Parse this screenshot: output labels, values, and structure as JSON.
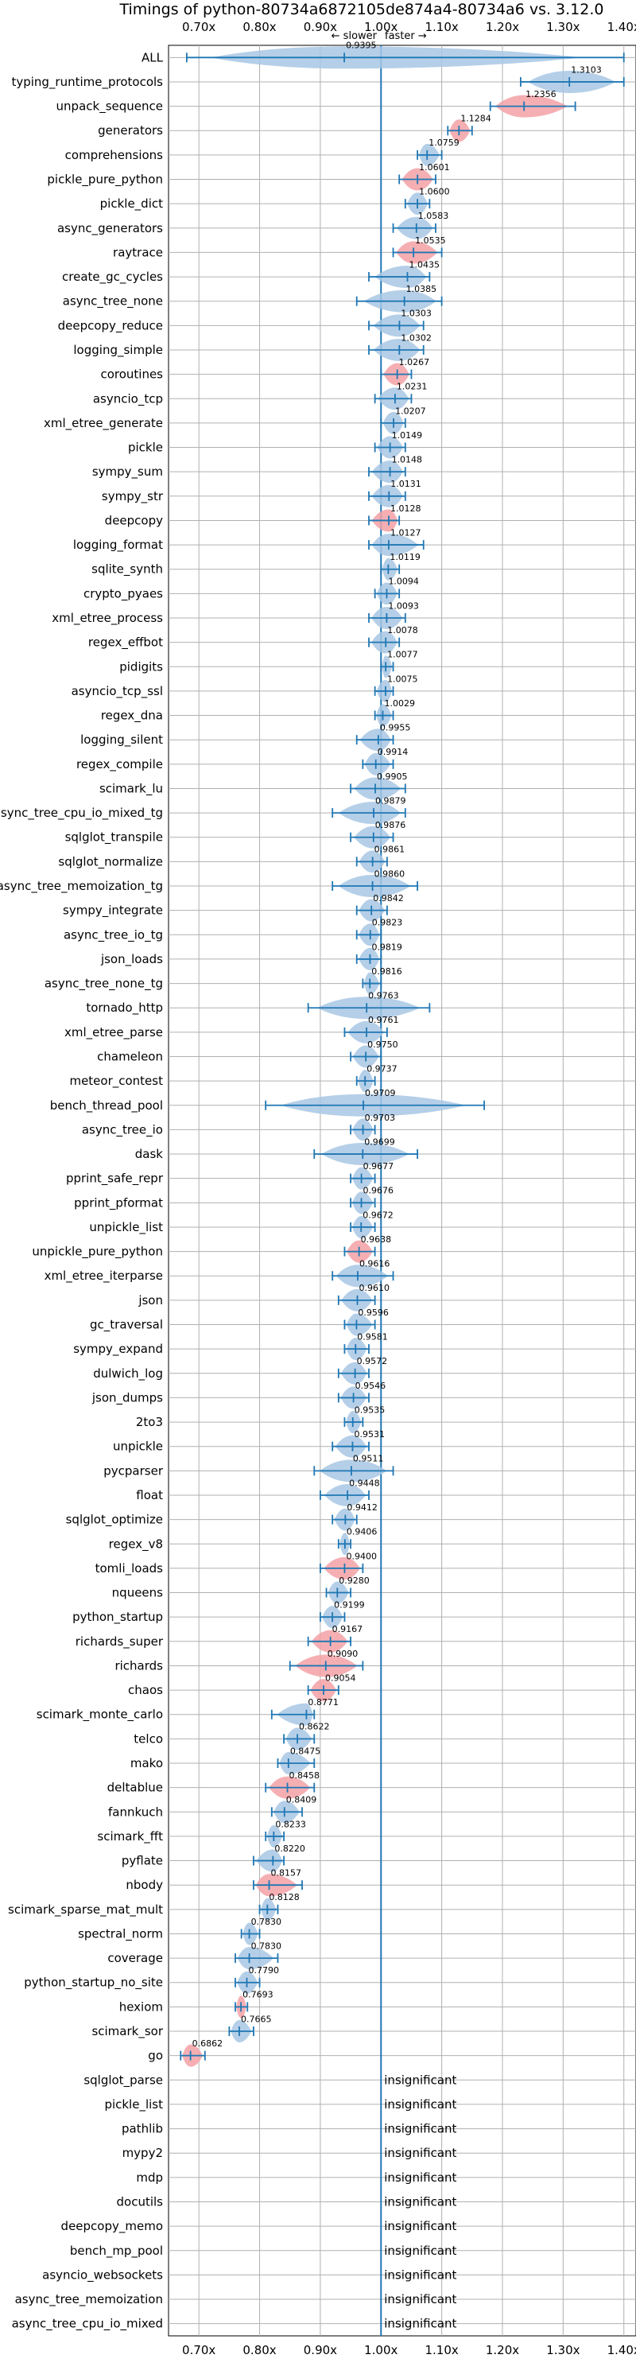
{
  "chart_data": {
    "type": "violin",
    "title": "Timings of python-80734a6872105de874a4-80734a6 vs. 3.12.0",
    "speed_note": {
      "slower": "← slower",
      "faster": "faster →"
    },
    "x_ticks": [
      "0.70x",
      "0.80x",
      "0.90x",
      "1.00x",
      "1.10x",
      "1.20x",
      "1.30x",
      "1.40x"
    ],
    "xlim": [
      0.65,
      1.42
    ],
    "grid": true,
    "insignificant_label": "insignificant",
    "benchmarks": [
      {
        "name": "ALL",
        "value": 0.9395,
        "label": "0.9395",
        "low": 0.68,
        "high": 1.4,
        "color": "blue"
      },
      {
        "name": "typing_runtime_protocols",
        "value": 1.3103,
        "label": "1.3103",
        "low": 1.23,
        "high": 1.4,
        "color": "blue"
      },
      {
        "name": "unpack_sequence",
        "value": 1.2356,
        "label": "1.2356",
        "low": 1.18,
        "high": 1.32,
        "color": "red"
      },
      {
        "name": "generators",
        "value": 1.1284,
        "label": "1.1284",
        "low": 1.11,
        "high": 1.15,
        "color": "red"
      },
      {
        "name": "comprehensions",
        "value": 1.0759,
        "label": "1.0759",
        "low": 1.06,
        "high": 1.1,
        "color": "blue"
      },
      {
        "name": "pickle_pure_python",
        "value": 1.0601,
        "label": "1.0601",
        "low": 1.03,
        "high": 1.09,
        "color": "red"
      },
      {
        "name": "pickle_dict",
        "value": 1.06,
        "label": "1.0600",
        "low": 1.04,
        "high": 1.08,
        "color": "blue"
      },
      {
        "name": "async_generators",
        "value": 1.0583,
        "label": "1.0583",
        "low": 1.02,
        "high": 1.09,
        "color": "blue"
      },
      {
        "name": "raytrace",
        "value": 1.0535,
        "label": "1.0535",
        "low": 1.02,
        "high": 1.1,
        "color": "red"
      },
      {
        "name": "create_gc_cycles",
        "value": 1.0435,
        "label": "1.0435",
        "low": 0.98,
        "high": 1.08,
        "color": "blue"
      },
      {
        "name": "async_tree_none",
        "value": 1.0385,
        "label": "1.0385",
        "low": 0.96,
        "high": 1.1,
        "color": "blue"
      },
      {
        "name": "deepcopy_reduce",
        "value": 1.0303,
        "label": "1.0303",
        "low": 0.98,
        "high": 1.07,
        "color": "blue"
      },
      {
        "name": "logging_simple",
        "value": 1.0302,
        "label": "1.0302",
        "low": 0.98,
        "high": 1.07,
        "color": "blue"
      },
      {
        "name": "coroutines",
        "value": 1.0267,
        "label": "1.0267",
        "low": 1.0,
        "high": 1.05,
        "color": "red"
      },
      {
        "name": "asyncio_tcp",
        "value": 1.0231,
        "label": "1.0231",
        "low": 0.99,
        "high": 1.05,
        "color": "blue"
      },
      {
        "name": "xml_etree_generate",
        "value": 1.0207,
        "label": "1.0207",
        "low": 1.0,
        "high": 1.04,
        "color": "blue"
      },
      {
        "name": "pickle",
        "value": 1.0149,
        "label": "1.0149",
        "low": 0.99,
        "high": 1.04,
        "color": "blue"
      },
      {
        "name": "sympy_sum",
        "value": 1.0148,
        "label": "1.0148",
        "low": 0.98,
        "high": 1.04,
        "color": "blue"
      },
      {
        "name": "sympy_str",
        "value": 1.0131,
        "label": "1.0131",
        "low": 0.98,
        "high": 1.04,
        "color": "blue"
      },
      {
        "name": "deepcopy",
        "value": 1.0128,
        "label": "1.0128",
        "low": 0.98,
        "high": 1.03,
        "color": "red"
      },
      {
        "name": "logging_format",
        "value": 1.0127,
        "label": "1.0127",
        "low": 0.98,
        "high": 1.07,
        "color": "blue"
      },
      {
        "name": "sqlite_synth",
        "value": 1.0119,
        "label": "1.0119",
        "low": 1.0,
        "high": 1.03,
        "color": "blue"
      },
      {
        "name": "crypto_pyaes",
        "value": 1.0094,
        "label": "1.0094",
        "low": 0.99,
        "high": 1.03,
        "color": "blue"
      },
      {
        "name": "xml_etree_process",
        "value": 1.0093,
        "label": "1.0093",
        "low": 0.98,
        "high": 1.04,
        "color": "blue"
      },
      {
        "name": "regex_effbot",
        "value": 1.0078,
        "label": "1.0078",
        "low": 0.98,
        "high": 1.03,
        "color": "blue"
      },
      {
        "name": "pidigits",
        "value": 1.0077,
        "label": "1.0077",
        "low": 1.0,
        "high": 1.02,
        "color": "blue"
      },
      {
        "name": "asyncio_tcp_ssl",
        "value": 1.0075,
        "label": "1.0075",
        "low": 0.99,
        "high": 1.02,
        "color": "blue"
      },
      {
        "name": "regex_dna",
        "value": 1.0029,
        "label": "1.0029",
        "low": 0.99,
        "high": 1.02,
        "color": "blue"
      },
      {
        "name": "logging_silent",
        "value": 0.9955,
        "label": "0.9955",
        "low": 0.96,
        "high": 1.02,
        "color": "blue"
      },
      {
        "name": "regex_compile",
        "value": 0.9914,
        "label": "0.9914",
        "low": 0.97,
        "high": 1.02,
        "color": "blue"
      },
      {
        "name": "scimark_lu",
        "value": 0.9905,
        "label": "0.9905",
        "low": 0.95,
        "high": 1.04,
        "color": "blue"
      },
      {
        "name": "async_tree_cpu_io_mixed_tg",
        "value": 0.9879,
        "label": "0.9879",
        "low": 0.92,
        "high": 1.04,
        "color": "blue"
      },
      {
        "name": "sqlglot_transpile",
        "value": 0.9876,
        "label": "0.9876",
        "low": 0.95,
        "high": 1.02,
        "color": "blue"
      },
      {
        "name": "sqlglot_normalize",
        "value": 0.9861,
        "label": "0.9861",
        "low": 0.96,
        "high": 1.01,
        "color": "blue"
      },
      {
        "name": "async_tree_memoization_tg",
        "value": 0.986,
        "label": "0.9860",
        "low": 0.92,
        "high": 1.06,
        "color": "blue"
      },
      {
        "name": "sympy_integrate",
        "value": 0.9842,
        "label": "0.9842",
        "low": 0.96,
        "high": 1.01,
        "color": "blue"
      },
      {
        "name": "async_tree_io_tg",
        "value": 0.9823,
        "label": "0.9823",
        "low": 0.96,
        "high": 1.0,
        "color": "blue"
      },
      {
        "name": "json_loads",
        "value": 0.9819,
        "label": "0.9819",
        "low": 0.96,
        "high": 1.0,
        "color": "blue"
      },
      {
        "name": "async_tree_none_tg",
        "value": 0.9816,
        "label": "0.9816",
        "low": 0.97,
        "high": 1.0,
        "color": "blue"
      },
      {
        "name": "tornado_http",
        "value": 0.9763,
        "label": "0.9763",
        "low": 0.88,
        "high": 1.08,
        "color": "blue"
      },
      {
        "name": "xml_etree_parse",
        "value": 0.9761,
        "label": "0.9761",
        "low": 0.94,
        "high": 1.01,
        "color": "blue"
      },
      {
        "name": "chameleon",
        "value": 0.975,
        "label": "0.9750",
        "low": 0.95,
        "high": 1.0,
        "color": "blue"
      },
      {
        "name": "meteor_contest",
        "value": 0.9737,
        "label": "0.9737",
        "low": 0.96,
        "high": 0.99,
        "color": "blue"
      },
      {
        "name": "bench_thread_pool",
        "value": 0.9709,
        "label": "0.9709",
        "low": 0.81,
        "high": 1.17,
        "color": "blue"
      },
      {
        "name": "async_tree_io",
        "value": 0.9703,
        "label": "0.9703",
        "low": 0.95,
        "high": 0.99,
        "color": "blue"
      },
      {
        "name": "dask",
        "value": 0.9699,
        "label": "0.9699",
        "low": 0.89,
        "high": 1.06,
        "color": "blue"
      },
      {
        "name": "pprint_safe_repr",
        "value": 0.9677,
        "label": "0.9677",
        "low": 0.95,
        "high": 0.99,
        "color": "blue"
      },
      {
        "name": "pprint_pformat",
        "value": 0.9676,
        "label": "0.9676",
        "low": 0.95,
        "high": 0.99,
        "color": "blue"
      },
      {
        "name": "unpickle_list",
        "value": 0.9672,
        "label": "0.9672",
        "low": 0.95,
        "high": 0.99,
        "color": "blue"
      },
      {
        "name": "unpickle_pure_python",
        "value": 0.9638,
        "label": "0.9638",
        "low": 0.94,
        "high": 0.99,
        "color": "red"
      },
      {
        "name": "xml_etree_iterparse",
        "value": 0.9616,
        "label": "0.9616",
        "low": 0.92,
        "high": 1.02,
        "color": "blue"
      },
      {
        "name": "json",
        "value": 0.961,
        "label": "0.9610",
        "low": 0.93,
        "high": 0.99,
        "color": "blue"
      },
      {
        "name": "gc_traversal",
        "value": 0.9596,
        "label": "0.9596",
        "low": 0.94,
        "high": 0.99,
        "color": "blue"
      },
      {
        "name": "sympy_expand",
        "value": 0.9581,
        "label": "0.9581",
        "low": 0.94,
        "high": 0.98,
        "color": "blue"
      },
      {
        "name": "dulwich_log",
        "value": 0.9572,
        "label": "0.9572",
        "low": 0.93,
        "high": 0.98,
        "color": "blue"
      },
      {
        "name": "json_dumps",
        "value": 0.9546,
        "label": "0.9546",
        "low": 0.93,
        "high": 0.98,
        "color": "blue"
      },
      {
        "name": "2to3",
        "value": 0.9535,
        "label": "0.9535",
        "low": 0.94,
        "high": 0.97,
        "color": "blue"
      },
      {
        "name": "unpickle",
        "value": 0.9531,
        "label": "0.9531",
        "low": 0.92,
        "high": 0.98,
        "color": "blue"
      },
      {
        "name": "pycparser",
        "value": 0.9511,
        "label": "0.9511",
        "low": 0.89,
        "high": 1.02,
        "color": "blue"
      },
      {
        "name": "float",
        "value": 0.9448,
        "label": "0.9448",
        "low": 0.9,
        "high": 0.98,
        "color": "blue"
      },
      {
        "name": "sqlglot_optimize",
        "value": 0.9412,
        "label": "0.9412",
        "low": 0.92,
        "high": 0.96,
        "color": "blue"
      },
      {
        "name": "regex_v8",
        "value": 0.9406,
        "label": "0.9406",
        "low": 0.93,
        "high": 0.95,
        "color": "blue"
      },
      {
        "name": "tomli_loads",
        "value": 0.94,
        "label": "0.9400",
        "low": 0.9,
        "high": 0.97,
        "color": "red"
      },
      {
        "name": "nqueens",
        "value": 0.928,
        "label": "0.9280",
        "low": 0.91,
        "high": 0.95,
        "color": "blue"
      },
      {
        "name": "python_startup",
        "value": 0.9199,
        "label": "0.9199",
        "low": 0.9,
        "high": 0.94,
        "color": "blue"
      },
      {
        "name": "richards_super",
        "value": 0.9167,
        "label": "0.9167",
        "low": 0.88,
        "high": 0.95,
        "color": "red"
      },
      {
        "name": "richards",
        "value": 0.909,
        "label": "0.9090",
        "low": 0.85,
        "high": 0.97,
        "color": "red"
      },
      {
        "name": "chaos",
        "value": 0.9054,
        "label": "0.9054",
        "low": 0.88,
        "high": 0.93,
        "color": "red"
      },
      {
        "name": "scimark_monte_carlo",
        "value": 0.8771,
        "label": "0.8771",
        "low": 0.82,
        "high": 0.89,
        "color": "blue"
      },
      {
        "name": "telco",
        "value": 0.8622,
        "label": "0.8622",
        "low": 0.84,
        "high": 0.89,
        "color": "blue"
      },
      {
        "name": "mako",
        "value": 0.8475,
        "label": "0.8475",
        "low": 0.83,
        "high": 0.89,
        "color": "blue"
      },
      {
        "name": "deltablue",
        "value": 0.8458,
        "label": "0.8458",
        "low": 0.81,
        "high": 0.89,
        "color": "red"
      },
      {
        "name": "fannkuch",
        "value": 0.8409,
        "label": "0.8409",
        "low": 0.82,
        "high": 0.87,
        "color": "blue"
      },
      {
        "name": "scimark_fft",
        "value": 0.8233,
        "label": "0.8233",
        "low": 0.81,
        "high": 0.84,
        "color": "blue"
      },
      {
        "name": "pyflate",
        "value": 0.822,
        "label": "0.8220",
        "low": 0.79,
        "high": 0.84,
        "color": "blue"
      },
      {
        "name": "nbody",
        "value": 0.8157,
        "label": "0.8157",
        "low": 0.79,
        "high": 0.87,
        "color": "red"
      },
      {
        "name": "scimark_sparse_mat_mult",
        "value": 0.8128,
        "label": "0.8128",
        "low": 0.8,
        "high": 0.83,
        "color": "blue"
      },
      {
        "name": "spectral_norm",
        "value": 0.783,
        "label": "0.7830",
        "low": 0.77,
        "high": 0.8,
        "color": "blue"
      },
      {
        "name": "coverage",
        "value": 0.783,
        "label": "0.7830",
        "low": 0.76,
        "high": 0.83,
        "color": "blue"
      },
      {
        "name": "python_startup_no_site",
        "value": 0.779,
        "label": "0.7790",
        "low": 0.76,
        "high": 0.8,
        "color": "blue"
      },
      {
        "name": "hexiom",
        "value": 0.7693,
        "label": "0.7693",
        "low": 0.76,
        "high": 0.78,
        "color": "red"
      },
      {
        "name": "scimark_sor",
        "value": 0.7665,
        "label": "0.7665",
        "low": 0.75,
        "high": 0.79,
        "color": "blue"
      },
      {
        "name": "go",
        "value": 0.6862,
        "label": "0.6862",
        "low": 0.67,
        "high": 0.71,
        "color": "red"
      },
      {
        "name": "sqlglot_parse",
        "insignificant": true
      },
      {
        "name": "pickle_list",
        "insignificant": true
      },
      {
        "name": "pathlib",
        "insignificant": true
      },
      {
        "name": "mypy2",
        "insignificant": true
      },
      {
        "name": "mdp",
        "insignificant": true
      },
      {
        "name": "docutils",
        "insignificant": true
      },
      {
        "name": "deepcopy_memo",
        "insignificant": true
      },
      {
        "name": "bench_mp_pool",
        "insignificant": true
      },
      {
        "name": "asyncio_websockets",
        "insignificant": true
      },
      {
        "name": "async_tree_memoization",
        "insignificant": true
      },
      {
        "name": "async_tree_cpu_io_mixed",
        "insignificant": true
      }
    ]
  },
  "colors": {
    "blue": "#1f77b4",
    "blue_fill": "#a8c7e4",
    "red_fill": "#f3a1a6",
    "grid": "#b0b0b0"
  }
}
